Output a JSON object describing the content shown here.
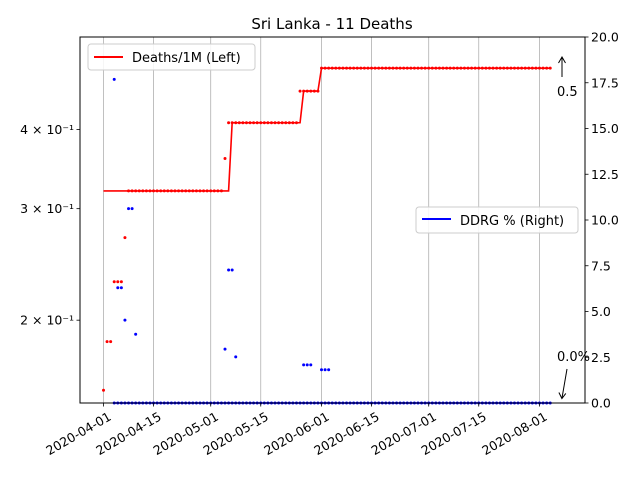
{
  "chart_data": {
    "type": "line",
    "title": "Sri Lanka - 11 Deaths",
    "xlabel": "",
    "ylabel_left": "",
    "ylabel_right": "",
    "x_ticks": [
      "2020-04-01",
      "2020-04-15",
      "2020-05-01",
      "2020-05-15",
      "2020-06-01",
      "2020-06-15",
      "2020-07-01",
      "2020-07-15",
      "2020-08-01"
    ],
    "y_left": {
      "scale": "log",
      "lim": [
        0.148,
        0.56
      ],
      "ticks": [
        {
          "value": 0.4,
          "label": "4 × 10⁻¹"
        },
        {
          "value": 0.3,
          "label": "3 × 10⁻¹"
        },
        {
          "value": 0.2,
          "label": "2 × 10⁻¹"
        }
      ]
    },
    "y_right": {
      "scale": "linear",
      "lim": [
        0,
        20
      ],
      "ticks": [
        "0.0",
        "2.5",
        "5.0",
        "7.5",
        "10.0",
        "12.5",
        "15.0",
        "17.5",
        "20.0"
      ]
    },
    "grid": "x-only",
    "series": [
      {
        "name": "Deaths/1M (Left)",
        "axis": "left",
        "color": "#ff0000",
        "line": [
          {
            "x": "2020-04-01",
            "y": 0.32
          },
          {
            "x": "2020-05-06",
            "y": 0.32
          },
          {
            "x": "2020-05-07",
            "y": 0.41
          },
          {
            "x": "2020-05-26",
            "y": 0.41
          },
          {
            "x": "2020-05-27",
            "y": 0.46
          },
          {
            "x": "2020-05-31",
            "y": 0.46
          },
          {
            "x": "2020-06-01",
            "y": 0.5
          },
          {
            "x": "2020-08-04",
            "y": 0.5
          }
        ],
        "points": [
          {
            "start": "2020-04-01",
            "end": "2020-04-01",
            "y": 0.155
          },
          {
            "start": "2020-04-02",
            "end": "2020-04-03",
            "y": 0.185
          },
          {
            "start": "2020-04-04",
            "end": "2020-04-06",
            "y": 0.23
          },
          {
            "start": "2020-04-07",
            "end": "2020-04-07",
            "y": 0.27
          },
          {
            "start": "2020-04-08",
            "end": "2020-05-04",
            "y": 0.32
          },
          {
            "start": "2020-05-05",
            "end": "2020-05-05",
            "y": 0.36
          },
          {
            "start": "2020-05-06",
            "end": "2020-05-25",
            "y": 0.41
          },
          {
            "start": "2020-05-26",
            "end": "2020-05-31",
            "y": 0.46
          },
          {
            "start": "2020-06-01",
            "end": "2020-08-04",
            "y": 0.5
          }
        ]
      },
      {
        "name": "",
        "axis": "left",
        "color": "#0000ff",
        "line": [],
        "points": [
          {
            "start": "2020-04-04",
            "end": "2020-04-04",
            "y": 0.48
          },
          {
            "start": "2020-04-05",
            "end": "2020-04-06",
            "y": 0.225
          },
          {
            "start": "2020-04-07",
            "end": "2020-04-07",
            "y": 0.2
          },
          {
            "start": "2020-04-08",
            "end": "2020-04-09",
            "y": 0.3
          },
          {
            "start": "2020-04-10",
            "end": "2020-04-10",
            "y": 0.19
          },
          {
            "start": "2020-05-05",
            "end": "2020-05-05",
            "y": 0.18
          },
          {
            "start": "2020-05-06",
            "end": "2020-05-07",
            "y": 0.24
          },
          {
            "start": "2020-05-08",
            "end": "2020-05-08",
            "y": 0.175
          },
          {
            "start": "2020-05-27",
            "end": "2020-05-29",
            "y": 0.17
          },
          {
            "start": "2020-06-01",
            "end": "2020-06-03",
            "y": 0.167
          }
        ]
      },
      {
        "name": "DDRG % (Right)",
        "axis": "right",
        "color": "#0000ff",
        "line": [
          {
            "x": "2020-04-04",
            "y": 0.0
          },
          {
            "x": "2020-08-04",
            "y": 0.0
          }
        ],
        "points": [
          {
            "start": "2020-04-04",
            "end": "2020-08-04",
            "y": 0.0
          }
        ]
      }
    ],
    "legends": [
      {
        "entries": [
          "Deaths/1M (Left)"
        ],
        "position": "top-left"
      },
      {
        "entries": [
          "DDRG % (Right)"
        ],
        "position": "center-right"
      }
    ],
    "annotations": [
      {
        "text": "0.5",
        "x": "2020-08-04",
        "axis": "left",
        "y": 0.5
      },
      {
        "text": "0.0%",
        "x": "2020-08-04",
        "axis": "right",
        "y": 0.0
      }
    ]
  }
}
